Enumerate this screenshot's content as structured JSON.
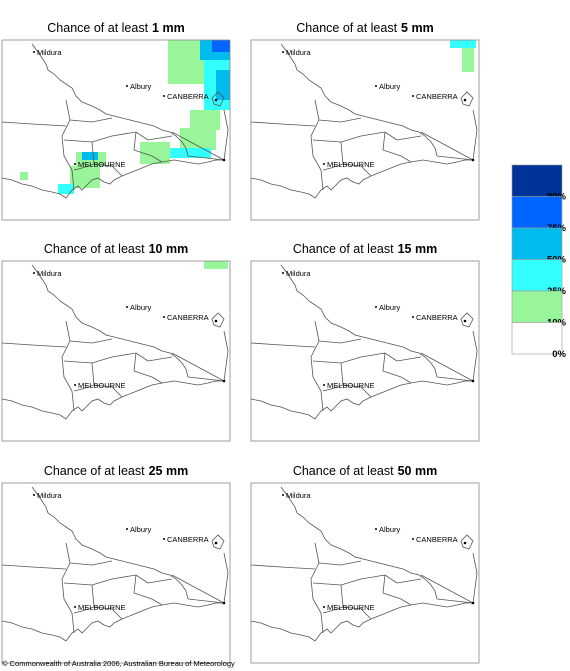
{
  "panels": [
    {
      "title": "Chance of at least",
      "threshold": "1 mm"
    },
    {
      "title": "Chance of at least",
      "threshold": "5 mm"
    },
    {
      "title": "Chance of at least",
      "threshold": "10 mm"
    },
    {
      "title": "Chance of at least",
      "threshold": "15 mm"
    },
    {
      "title": "Chance of at least",
      "threshold": "25 mm"
    },
    {
      "title": "Chance of at least",
      "threshold": "50 mm"
    }
  ],
  "places": [
    "Mildura",
    "CANBERRA",
    "Albury",
    "MELBOURNE"
  ],
  "legend": [
    {
      "value": 90,
      "label": "90%",
      "color": "#003399"
    },
    {
      "value": 75,
      "label": "75%",
      "color": "#0066ff"
    },
    {
      "value": 50,
      "label": "50%",
      "color": "#00bbee"
    },
    {
      "value": 25,
      "label": "25%",
      "color": "#33ffff"
    },
    {
      "value": 10,
      "label": "10%",
      "color": "#99f599"
    },
    {
      "value": 0,
      "label": "0%",
      "color": "#ffffff"
    }
  ],
  "footer": "© Commonwealth of Australia 2006, Australian Bureau of Meteorology"
}
